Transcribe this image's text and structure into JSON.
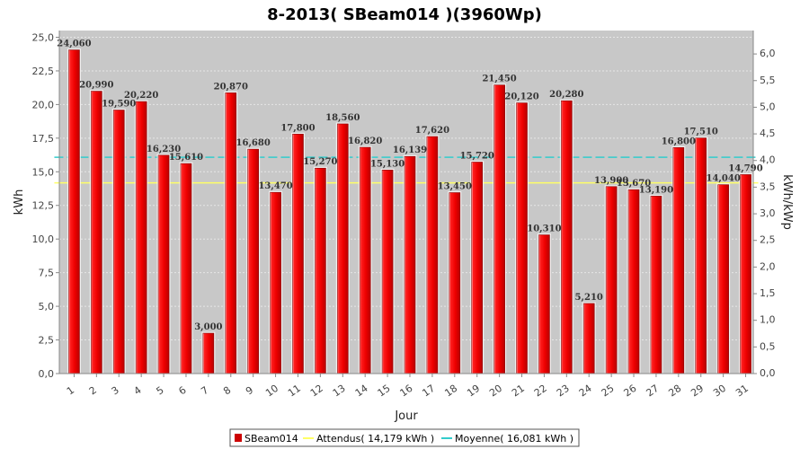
{
  "chart_data": {
    "type": "bar",
    "title": "8-2013( SBeam014 )(3960Wp)",
    "xlabel": "Jour",
    "ylabel": "kWh",
    "ylabel_right": "kWh/kWp",
    "ylim": [
      0,
      25.5
    ],
    "ylim_right": [
      0,
      6.44
    ],
    "yticks": [
      "0,0",
      "2,5",
      "5,0",
      "7,5",
      "10,0",
      "12,5",
      "15,0",
      "17,5",
      "20,0",
      "22,5",
      "25,0"
    ],
    "yticks_right": [
      "0,0",
      "0,5",
      "1,0",
      "1,5",
      "2,0",
      "2,5",
      "3,0",
      "3,5",
      "4,0",
      "4,5",
      "5,0",
      "5,5",
      "6,0"
    ],
    "categories": [
      "1",
      "2",
      "3",
      "4",
      "5",
      "6",
      "7",
      "8",
      "9",
      "10",
      "11",
      "12",
      "13",
      "14",
      "15",
      "16",
      "17",
      "18",
      "19",
      "20",
      "21",
      "22",
      "23",
      "24",
      "25",
      "26",
      "27",
      "28",
      "29",
      "30",
      "31"
    ],
    "series": [
      {
        "name": "SBeam014",
        "color": "#ff0000",
        "values": [
          24.06,
          20.99,
          19.59,
          20.22,
          16.23,
          15.61,
          3.0,
          20.87,
          16.68,
          13.47,
          17.8,
          15.27,
          18.56,
          16.82,
          15.13,
          16.139,
          17.62,
          13.45,
          15.72,
          21.45,
          20.12,
          10.31,
          20.28,
          5.21,
          13.9,
          13.67,
          13.19,
          16.8,
          17.51,
          14.04,
          14.79
        ],
        "labels": [
          "24,060",
          "20,990",
          "19,590",
          "20,220",
          "16,230",
          "15,610",
          "3,000",
          "20,870",
          "16,680",
          "13,470",
          "17,800",
          "15,270",
          "18,560",
          "16,820",
          "15,130",
          "16,139",
          "17,620",
          "13,450",
          "15,720",
          "21,450",
          "20,120",
          "10,310",
          "20,280",
          "5,210",
          "13,900",
          "13,670",
          "13,190",
          "16,800",
          "17,510",
          "14,040",
          "14,790"
        ]
      }
    ],
    "reference_lines": [
      {
        "name": "Attendus( 14,179 kWh )",
        "value": 14.179,
        "color": "#ffff66"
      },
      {
        "name": "Moyenne( 16,081 kWh )",
        "value": 16.081,
        "color": "#33cccc"
      }
    ],
    "grid": true,
    "legend_position": "bottom",
    "plot_background": "#c8c8c8"
  }
}
